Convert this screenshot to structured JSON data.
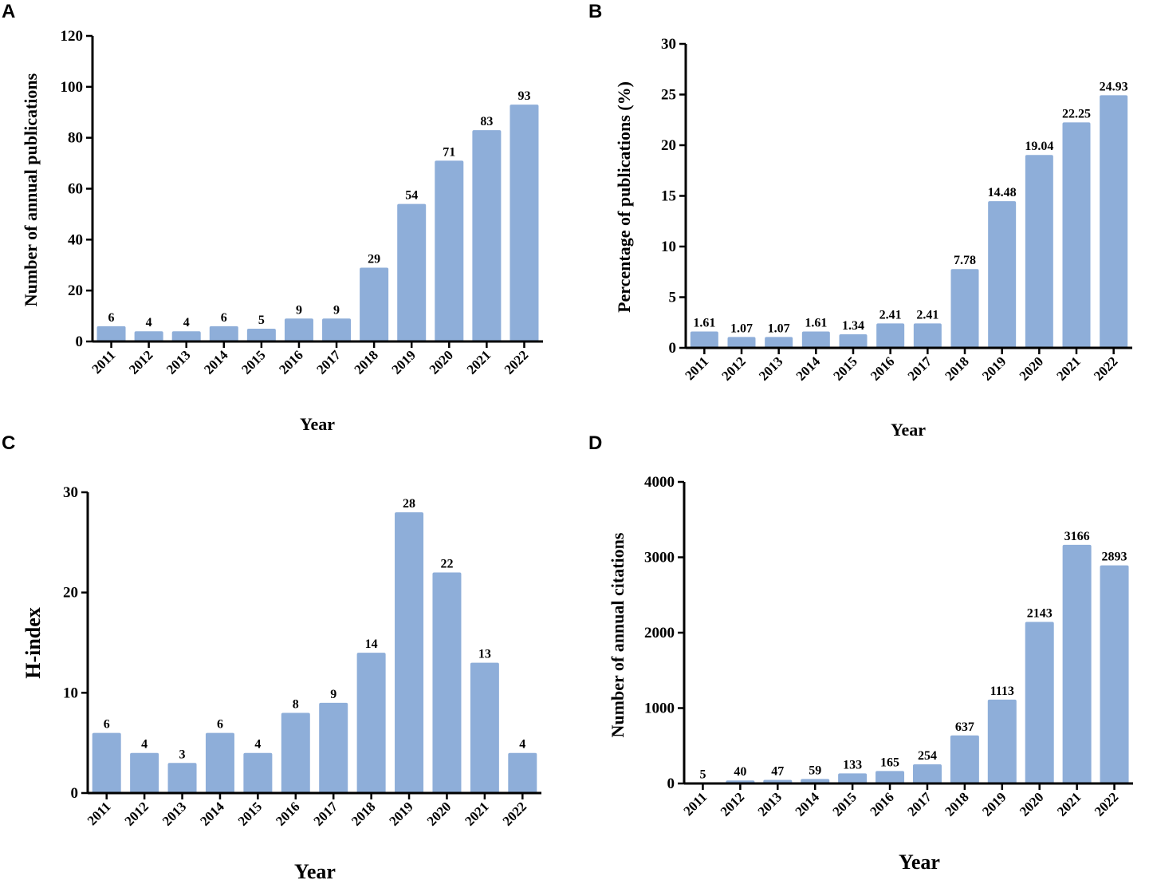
{
  "chart_data": [
    {
      "panel": "A",
      "type": "bar",
      "categories": [
        "2011",
        "2012",
        "2013",
        "2014",
        "2015",
        "2016",
        "2017",
        "2018",
        "2019",
        "2020",
        "2021",
        "2022"
      ],
      "values": [
        6,
        4,
        4,
        6,
        5,
        9,
        9,
        29,
        54,
        71,
        83,
        93
      ],
      "data_labels": [
        "6",
        "4",
        "4",
        "6",
        "5",
        "9",
        "9",
        "29",
        "54",
        "71",
        "83",
        "93"
      ],
      "ylabel": "Number  of annual publications",
      "xlabel": "Year",
      "ylim": [
        0,
        120
      ],
      "yticks": [
        0,
        20,
        40,
        60,
        80,
        100,
        120
      ],
      "color": "#8eaed9"
    },
    {
      "panel": "B",
      "type": "bar",
      "categories": [
        "2011",
        "2012",
        "2013",
        "2014",
        "2015",
        "2016",
        "2017",
        "2018",
        "2019",
        "2020",
        "2021",
        "2022"
      ],
      "values": [
        1.61,
        1.07,
        1.07,
        1.61,
        1.34,
        2.41,
        2.41,
        7.78,
        14.48,
        19.04,
        22.25,
        24.93
      ],
      "data_labels": [
        "1.61",
        "1.07",
        "1.07",
        "1.61",
        "1.34",
        "2.41",
        "2.41",
        "7.78",
        "14.48",
        "19.04",
        "22.25",
        "24.93"
      ],
      "ylabel": "Percentage of publications (%)",
      "xlabel": "Year",
      "ylim": [
        0,
        30
      ],
      "yticks": [
        0,
        5,
        10,
        15,
        20,
        25,
        30
      ],
      "color": "#8eaed9"
    },
    {
      "panel": "C",
      "type": "bar",
      "categories": [
        "2011",
        "2012",
        "2013",
        "2014",
        "2015",
        "2016",
        "2017",
        "2018",
        "2019",
        "2020",
        "2021",
        "2022"
      ],
      "values": [
        6,
        4,
        3,
        6,
        4,
        8,
        9,
        14,
        28,
        22,
        13,
        4
      ],
      "data_labels": [
        "6",
        "4",
        "3",
        "6",
        "4",
        "8",
        "9",
        "14",
        "28",
        "22",
        "13",
        "4"
      ],
      "ylabel": "H-index",
      "xlabel": "Year",
      "ylim": [
        0,
        30
      ],
      "yticks": [
        0,
        10,
        20,
        30
      ],
      "color": "#8eaed9"
    },
    {
      "panel": "D",
      "type": "bar",
      "categories": [
        "2011",
        "2012",
        "2013",
        "2014",
        "2015",
        "2016",
        "2017",
        "2018",
        "2019",
        "2020",
        "2021",
        "2022"
      ],
      "values": [
        5,
        40,
        47,
        59,
        133,
        165,
        254,
        637,
        1113,
        2143,
        3166,
        2893
      ],
      "data_labels": [
        "5",
        "40",
        "47",
        "59",
        "133",
        "165",
        "254",
        "637",
        "1113",
        "2143",
        "3166",
        "2893"
      ],
      "ylabel": "Number  of annual citations",
      "xlabel": "Year",
      "ylim": [
        0,
        4000
      ],
      "yticks": [
        0,
        1000,
        2000,
        3000,
        4000
      ],
      "color": "#8eaed9"
    }
  ]
}
